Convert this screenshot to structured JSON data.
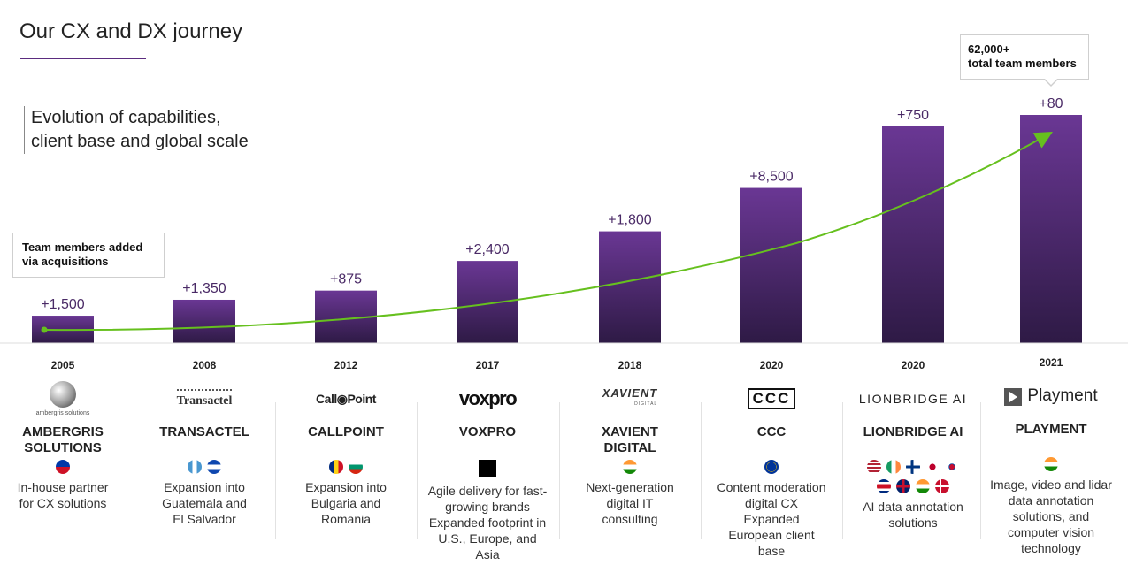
{
  "page": {
    "title": "Our CX and DX journey",
    "subtitle_line1": "Evolution of capabilities,",
    "subtitle_line2": "client base and global scale",
    "callout_left": "Team members added via acquisitions",
    "callout_right_line1": "62,000+",
    "callout_right_line2": "total team members"
  },
  "colors": {
    "bar": "#5b2c7f",
    "trend": "#66c01e",
    "axis": "#dcdcdc"
  },
  "chart_data": {
    "type": "bar",
    "categories": [
      "2005",
      "2008",
      "2012",
      "2017",
      "2018",
      "2020",
      "2020",
      "2021"
    ],
    "values": [
      1500,
      1350,
      875,
      2400,
      1800,
      8500,
      750,
      80
    ],
    "bar_labels": [
      "+1,500",
      "+1,350",
      "+875",
      "+2,400",
      "+1,800",
      "+8,500",
      "+750",
      "+80"
    ],
    "bar_heights_relative": [
      0.12,
      0.19,
      0.23,
      0.36,
      0.49,
      0.68,
      0.95,
      1.0
    ],
    "trend_line": "growth arrow"
  },
  "acquisitions": [
    {
      "year": "2005",
      "logo": "AMBERGRIS",
      "logo_sub": "ambergris solutions",
      "name_line1": "AMBERGRIS",
      "name_line2": "SOLUTIONS",
      "flags": [
        "philippines"
      ],
      "desc": [
        "In-house partner",
        "for CX solutions"
      ]
    },
    {
      "year": "2008",
      "logo": "Transactel",
      "logo_sub": "",
      "name_line1": "TRANSACTEL",
      "name_line2": "",
      "flags": [
        "guatemala",
        "el-salvador"
      ],
      "desc": [
        "Expansion into",
        "Guatemala and",
        "El Salvador"
      ]
    },
    {
      "year": "2012",
      "logo": "Call◉Point",
      "logo_sub": "",
      "name_line1": "CALLPOINT",
      "name_line2": "",
      "flags": [
        "romania",
        "bulgaria"
      ],
      "desc": [
        "Expansion into",
        "Bulgaria and",
        "Romania"
      ]
    },
    {
      "year": "2017",
      "logo": "voxpro",
      "logo_sub": "",
      "name_line1": "VOXPRO",
      "name_line2": "",
      "flags": [
        "black-square"
      ],
      "desc": [
        "Agile delivery for fast-",
        "growing brands",
        "Expanded footprint in",
        "U.S., Europe, and",
        "Asia"
      ]
    },
    {
      "year": "2018",
      "logo": "XAVIENT",
      "logo_sub": "DIGITAL",
      "name_line1": "XAVIENT",
      "name_line2": "DIGITAL",
      "flags": [
        "india"
      ],
      "desc": [
        "Next-generation",
        "digital IT",
        "consulting"
      ]
    },
    {
      "year": "2020",
      "logo": "CCC",
      "logo_sub": "",
      "name_line1": "CCC",
      "name_line2": "",
      "flags": [
        "eu"
      ],
      "desc": [
        "Content moderation",
        "digital CX",
        "Expanded",
        "European client",
        "base"
      ]
    },
    {
      "year": "2020",
      "logo": "LIONBRIDGE AI",
      "logo_sub": "",
      "name_line1": "LIONBRIDGE AI",
      "name_line2": "",
      "flags": [
        "usa",
        "ireland",
        "finland",
        "japan",
        "korea",
        "costa-rica",
        "uk",
        "india",
        "denmark"
      ],
      "desc": [
        "AI data annotation",
        "solutions"
      ]
    },
    {
      "year": "2021",
      "logo": "Playment",
      "logo_sub": "",
      "name_line1": "PLAYMENT",
      "name_line2": "",
      "flags": [
        "india"
      ],
      "desc": [
        "Image, video and lidar",
        "data annotation",
        "solutions, and",
        "computer vision",
        "technology"
      ]
    }
  ]
}
